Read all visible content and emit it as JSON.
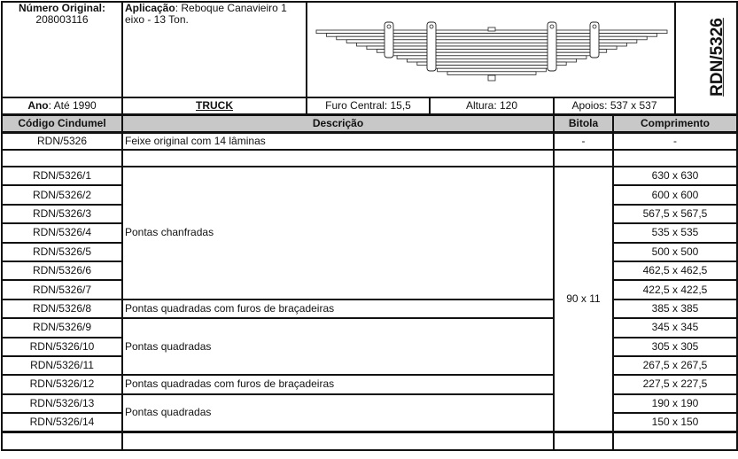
{
  "header": {
    "numero_original_label": "Número Original:",
    "numero_original_value": "208003116",
    "aplicacao_label": "Aplicação",
    "aplicacao_value": ": Reboque Canavieiro 1 eixo - 13 Ton.",
    "codigo_vertical": "RDN/5326",
    "ano_label": "Ano",
    "ano_value": ": Até 1990",
    "categoria": "TRUCK",
    "furo_central": "Furo Central: 15,5",
    "altura": "Altura: 120",
    "apoios": "Apoios: 537 x 537"
  },
  "diagram": {
    "type": "leaf-spring",
    "leaves": 14
  },
  "columns": {
    "codigo": "Código Cindumel",
    "descricao": "Descrição",
    "bitola": "Bitola",
    "comprimento": "Comprimento"
  },
  "original": {
    "codigo": "RDN/5326",
    "descricao": "Feixe original com 14 lâminas",
    "bitola": "-",
    "comprimento": "-"
  },
  "bitola": "90 x 11",
  "desc_groups": [
    {
      "text": "Pontas chanfradas",
      "rows": 7
    },
    {
      "text": "Pontas quadradas com furos de braçadeiras",
      "rows": 1
    },
    {
      "text": "Pontas quadradas",
      "rows": 3
    },
    {
      "text": "Pontas quadradas com furos de braçadeiras",
      "rows": 1
    },
    {
      "text": "Pontas quadradas",
      "rows": 2
    }
  ],
  "rows": [
    {
      "codigo": "RDN/5326/1",
      "comprimento": "630 x 630"
    },
    {
      "codigo": "RDN/5326/2",
      "comprimento": "600 x 600"
    },
    {
      "codigo": "RDN/5326/3",
      "comprimento": "567,5 x 567,5"
    },
    {
      "codigo": "RDN/5326/4",
      "comprimento": "535 x 535"
    },
    {
      "codigo": "RDN/5326/5",
      "comprimento": "500 x 500"
    },
    {
      "codigo": "RDN/5326/6",
      "comprimento": "462,5 x 462,5"
    },
    {
      "codigo": "RDN/5326/7",
      "comprimento": "422,5 x 422,5"
    },
    {
      "codigo": "RDN/5326/8",
      "comprimento": "385 x 385"
    },
    {
      "codigo": "RDN/5326/9",
      "comprimento": "345 x 345"
    },
    {
      "codigo": "RDN/5326/10",
      "comprimento": "305 x 305"
    },
    {
      "codigo": "RDN/5326/11",
      "comprimento": "267,5 x 267,5"
    },
    {
      "codigo": "RDN/5326/12",
      "comprimento": "227,5 x 227,5"
    },
    {
      "codigo": "RDN/5326/13",
      "comprimento": "190 x 190"
    },
    {
      "codigo": "RDN/5326/14",
      "comprimento": "150 x 150"
    }
  ]
}
